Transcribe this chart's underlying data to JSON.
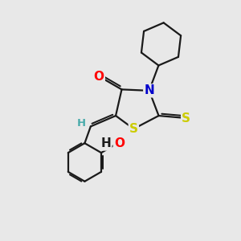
{
  "background_color": "#e8e8e8",
  "bond_color": "#1a1a1a",
  "bond_width": 1.6,
  "atom_colors": {
    "O": "#ff0000",
    "N": "#0000cc",
    "S": "#cccc00",
    "H": "#4aabab",
    "HO_H": "#1a1a1a",
    "HO_O": "#ff0000"
  },
  "font_size_atoms": 11,
  "font_size_H": 9.5
}
